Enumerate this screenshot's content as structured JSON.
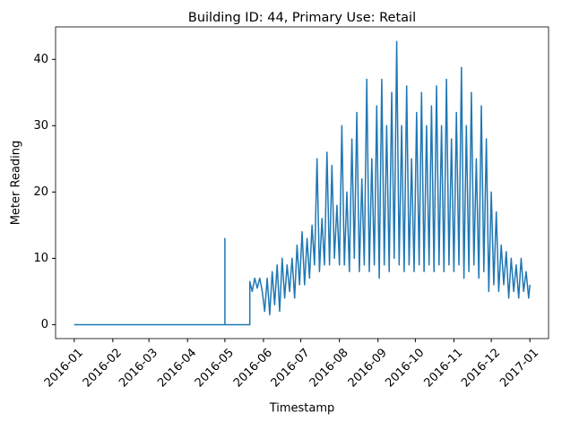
{
  "chart_data": {
    "type": "line",
    "title": "Building ID: 44, Primary Use: Retail",
    "x_label": "Timestamp",
    "y_label": "Meter Reading",
    "color": "#1f77b4",
    "x": [
      0,
      121,
      121,
      121,
      141,
      141,
      143,
      145,
      147,
      149,
      151,
      153,
      155,
      157,
      159,
      161,
      163,
      165,
      167,
      169,
      171,
      173,
      175,
      177,
      179,
      181,
      183,
      185,
      187,
      189,
      191,
      193,
      195,
      197,
      199,
      201,
      203,
      205,
      207,
      209,
      211,
      213,
      215,
      217,
      219,
      221,
      223,
      225,
      227,
      229,
      231,
      233,
      235,
      237,
      239,
      241,
      243,
      245,
      247,
      249,
      251,
      253,
      255,
      257,
      259,
      261,
      263,
      265,
      267,
      269,
      271,
      273,
      275,
      277,
      279,
      281,
      283,
      285,
      287,
      289,
      291,
      293,
      295,
      297,
      299,
      301,
      303,
      305,
      307,
      309,
      311,
      313,
      315,
      317,
      319,
      321,
      323,
      325,
      327,
      329,
      331,
      333,
      335,
      337,
      339,
      341,
      343,
      345,
      347,
      349,
      351,
      353,
      355,
      357,
      359,
      361,
      363,
      365,
      366
    ],
    "values": [
      0,
      0,
      13,
      0,
      0,
      6.5,
      5,
      7,
      5.5,
      7,
      5,
      2,
      7,
      1.5,
      8,
      3,
      9,
      2,
      10,
      4,
      9,
      5,
      10,
      4,
      12,
      6,
      14,
      6,
      13,
      7,
      15,
      9,
      25,
      8,
      16,
      9,
      26,
      9,
      24,
      10,
      18,
      9,
      30,
      9,
      20,
      8,
      28,
      10,
      32,
      8,
      22,
      9,
      37,
      8,
      25,
      9,
      33,
      7,
      37,
      9,
      30,
      8,
      35,
      10,
      42.7,
      9,
      30,
      8,
      36,
      9,
      25,
      8,
      32,
      9,
      35,
      8,
      30,
      9,
      33,
      8,
      36,
      9,
      30,
      8,
      37,
      9,
      28,
      8,
      32,
      9,
      38.8,
      7,
      30,
      8,
      35,
      9,
      25,
      7,
      33,
      8,
      28,
      5,
      20,
      6,
      17,
      5,
      12,
      6,
      11,
      4,
      10,
      5,
      9,
      4,
      10,
      5,
      8,
      4,
      6
    ],
    "xlim": [
      -15,
      381
    ],
    "ylim": [
      -2.1,
      44.9
    ],
    "xticks": [
      {
        "value": 0,
        "label": "2016-01"
      },
      {
        "value": 31,
        "label": "2016-02"
      },
      {
        "value": 60,
        "label": "2016-03"
      },
      {
        "value": 91,
        "label": "2016-04"
      },
      {
        "value": 121,
        "label": "2016-05"
      },
      {
        "value": 152,
        "label": "2016-06"
      },
      {
        "value": 182,
        "label": "2016-07"
      },
      {
        "value": 213,
        "label": "2016-08"
      },
      {
        "value": 244,
        "label": "2016-09"
      },
      {
        "value": 274,
        "label": "2016-10"
      },
      {
        "value": 305,
        "label": "2016-11"
      },
      {
        "value": 335,
        "label": "2016-12"
      },
      {
        "value": 366,
        "label": "2017-01"
      }
    ],
    "yticks": [
      0,
      10,
      20,
      30,
      40
    ]
  }
}
